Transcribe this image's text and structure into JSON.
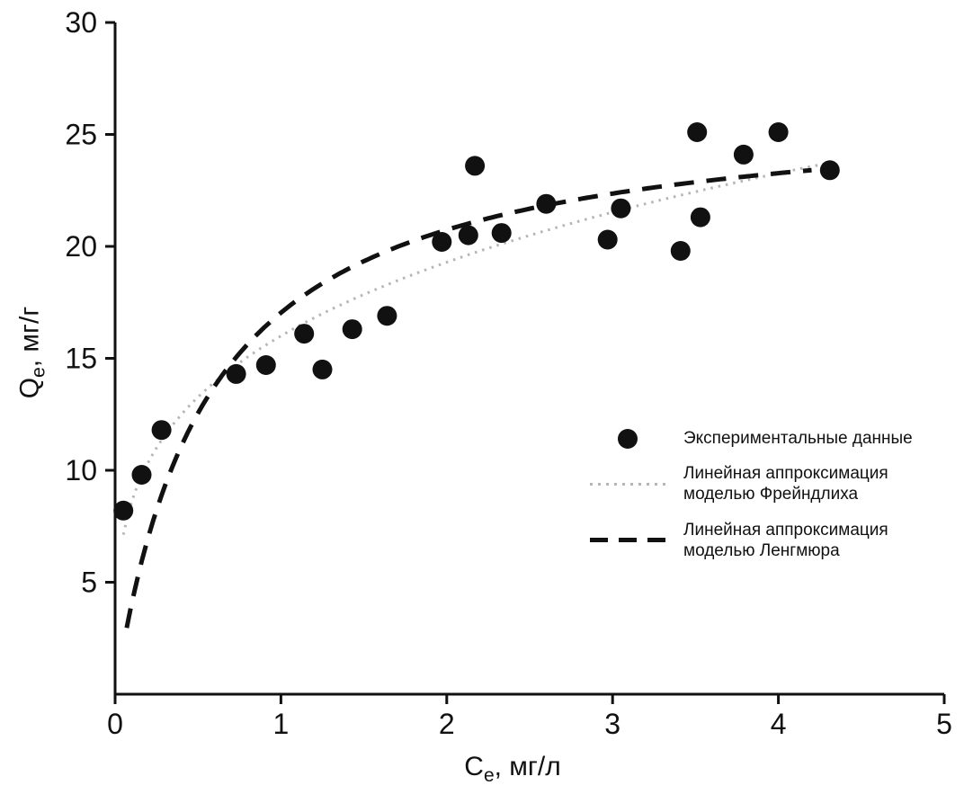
{
  "chart_data": {
    "type": "scatter",
    "title": "",
    "xlabel": "Ce, мг/л",
    "ylabel": "Qe, мг/г",
    "xlim": [
      0,
      5
    ],
    "ylim": [
      0,
      30
    ],
    "xticks": [
      0,
      1,
      2,
      3,
      4,
      5
    ],
    "yticks": [
      5,
      10,
      15,
      20,
      25,
      30
    ],
    "grid": false,
    "legend_position": "inside-right",
    "colors": {
      "axis": "#111111",
      "points": "#111111",
      "freundlich": "#b5b5b5",
      "langmuir": "#111111",
      "background": "#ffffff"
    },
    "axes": {
      "x": {
        "symbol": "C",
        "sub": "e",
        "unit": ", мг/л"
      },
      "y": {
        "symbol": "Q",
        "sub": "e",
        "unit": ", мг/г"
      }
    },
    "series": [
      {
        "name": "Экспериментальные данные",
        "type": "scatter",
        "points": [
          [
            0.05,
            8.2
          ],
          [
            0.16,
            9.8
          ],
          [
            0.28,
            11.8
          ],
          [
            0.73,
            14.3
          ],
          [
            0.91,
            14.7
          ],
          [
            1.14,
            16.1
          ],
          [
            1.25,
            14.5
          ],
          [
            1.43,
            16.3
          ],
          [
            1.64,
            16.9
          ],
          [
            1.97,
            20.2
          ],
          [
            2.13,
            20.5
          ],
          [
            2.17,
            23.6
          ],
          [
            2.33,
            20.6
          ],
          [
            2.6,
            21.9
          ],
          [
            2.97,
            20.3
          ],
          [
            3.05,
            21.7
          ],
          [
            3.41,
            19.8
          ],
          [
            3.51,
            25.1
          ],
          [
            3.53,
            21.3
          ],
          [
            3.79,
            24.1
          ],
          [
            4.0,
            25.1
          ],
          [
            4.31,
            23.4
          ]
        ]
      },
      {
        "name": "Линейная аппроксимация моделью Фрейндлиха",
        "type": "curve",
        "model": "freundlich",
        "params": {
          "Kf": 16.0,
          "n_inv": 0.27
        },
        "x_range": [
          0.05,
          4.3
        ],
        "style": "dotted",
        "color": "#b5b5b5"
      },
      {
        "name": "Линейная аппроксимация моделью Ленгмюра",
        "type": "curve",
        "model": "langmuir",
        "params": {
          "Qm": 26.5,
          "b": 1.8
        },
        "x_range": [
          0.07,
          4.2
        ],
        "style": "dashed",
        "color": "#111111"
      }
    ],
    "legend": {
      "items": [
        {
          "marker": "circle",
          "lines": [
            "Экспериментальные данные"
          ]
        },
        {
          "marker": "dotted-line",
          "lines": [
            "Линейная аппроксимация",
            "моделью Фрейндлиха"
          ]
        },
        {
          "marker": "dashed-line",
          "lines": [
            "Линейная аппроксимация",
            "моделью Ленгмюра"
          ]
        }
      ]
    }
  }
}
